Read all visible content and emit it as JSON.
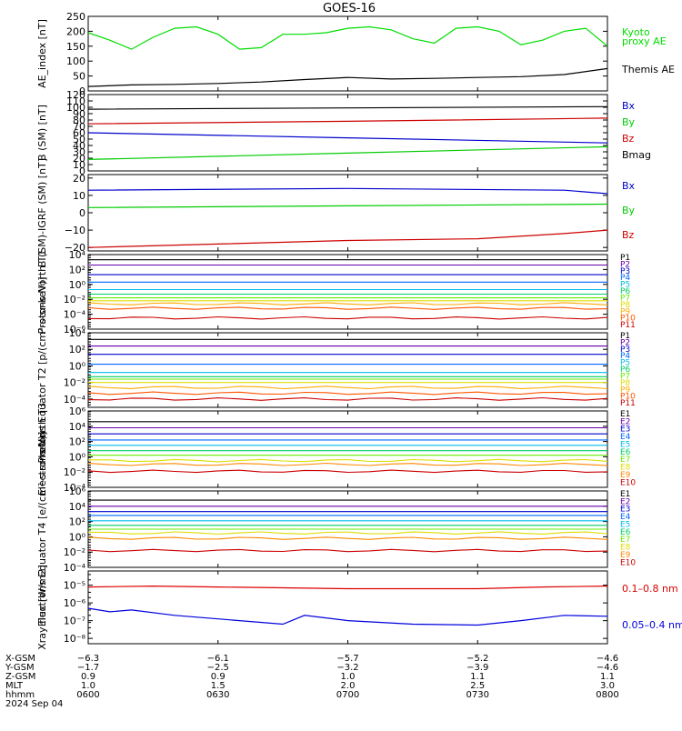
{
  "title": "GOES-16",
  "chart_data": [
    {
      "type": "line",
      "ylabel": "AE_index [nT]",
      "ylim": [
        0,
        250
      ],
      "yscale": "linear",
      "yticks": [
        0,
        50,
        100,
        150,
        200,
        250
      ],
      "ytick_labels": [
        "0",
        "50",
        "100",
        "150",
        "200",
        "250"
      ],
      "series": [
        {
          "name": "Kyoto proxy AE",
          "color": "#00dd00",
          "x": [
            "06:00",
            "06:05",
            "06:10",
            "06:15",
            "06:20",
            "06:25",
            "06:30",
            "06:35",
            "06:40",
            "06:45",
            "06:50",
            "06:55",
            "07:00",
            "07:05",
            "07:10",
            "07:15",
            "07:20",
            "07:25",
            "07:30",
            "07:35",
            "07:40",
            "07:45",
            "07:50",
            "07:55",
            "08:00"
          ],
          "values": [
            195,
            170,
            140,
            180,
            210,
            215,
            190,
            140,
            145,
            190,
            190,
            195,
            210,
            215,
            205,
            175,
            160,
            210,
            215,
            200,
            155,
            170,
            200,
            210,
            150
          ]
        },
        {
          "name": "Themis AE",
          "color": "#000000",
          "x": [
            "06:00",
            "06:10",
            "06:20",
            "06:30",
            "06:40",
            "06:50",
            "07:00",
            "07:10",
            "07:20",
            "07:30",
            "07:40",
            "07:50",
            "08:00"
          ],
          "values": [
            15,
            20,
            22,
            25,
            30,
            38,
            45,
            40,
            42,
            45,
            48,
            55,
            75
          ]
        }
      ]
    },
    {
      "type": "line",
      "ylabel": "B (SM) [nT]",
      "ylim": [
        0,
        120
      ],
      "yscale": "linear",
      "yticks": [
        0,
        10,
        20,
        30,
        40,
        50,
        60,
        70,
        80,
        90,
        100,
        110,
        120
      ],
      "ytick_labels": [
        "0",
        "10",
        "20",
        "30",
        "40",
        "50",
        "60",
        "70",
        "80",
        "90",
        "100",
        "110",
        "120"
      ],
      "series": [
        {
          "name": "Bx",
          "color": "#0000cc",
          "x": [
            "06:00",
            "07:00",
            "08:00"
          ],
          "values": [
            60,
            52,
            44
          ]
        },
        {
          "name": "By",
          "color": "#00cc00",
          "x": [
            "06:00",
            "07:00",
            "08:00"
          ],
          "values": [
            18,
            28,
            38
          ]
        },
        {
          "name": "Bz",
          "color": "#cc0000",
          "x": [
            "06:00",
            "07:00",
            "08:00"
          ],
          "values": [
            74,
            78,
            83
          ]
        },
        {
          "name": "Bmag",
          "color": "#000000",
          "x": [
            "06:00",
            "07:00",
            "08:00"
          ],
          "values": [
            97,
            99,
            101
          ]
        }
      ]
    },
    {
      "type": "line",
      "ylabel": "B (SM)-IGRF (SM) [nT]",
      "ylim": [
        -22,
        22
      ],
      "yscale": "linear",
      "yticks": [
        -20,
        -10,
        0,
        10,
        20
      ],
      "ytick_labels": [
        "−20",
        "−10",
        "0",
        "10",
        "20"
      ],
      "series": [
        {
          "name": "Bx",
          "color": "#0000cc",
          "x": [
            "06:00",
            "07:00",
            "07:50",
            "08:00"
          ],
          "values": [
            13,
            14,
            13,
            11
          ]
        },
        {
          "name": "By",
          "color": "#00cc00",
          "x": [
            "06:00",
            "07:00",
            "08:00"
          ],
          "values": [
            3,
            4,
            5
          ]
        },
        {
          "name": "Bz",
          "color": "#cc0000",
          "x": [
            "06:00",
            "06:30",
            "07:00",
            "07:30",
            "07:50",
            "08:00"
          ],
          "values": [
            -20,
            -18,
            -16,
            -15,
            -12,
            -10
          ]
        }
      ]
    },
    {
      "type": "line",
      "ylabel": "Protons North T1",
      "yscale": "log",
      "ylim_log10": [
        -6,
        4
      ],
      "yticks_log10": [
        -6,
        -4,
        -2,
        0,
        2,
        4
      ],
      "ytick_labels": [
        "10⁻⁶",
        "10⁻⁴",
        "10⁻²",
        "10⁰",
        "10²",
        "10⁴"
      ],
      "channels": [
        "P1",
        "P2",
        "P3",
        "P4",
        "P5",
        "P6",
        "P7",
        "P8",
        "P9",
        "P10",
        "P11"
      ],
      "channel_colors": [
        "#000000",
        "#6600aa",
        "#0000cc",
        "#0066ff",
        "#00bbee",
        "#00cc66",
        "#66ee00",
        "#dddd00",
        "#ffaa00",
        "#ff5500",
        "#cc0000"
      ],
      "log10_levels": [
        3.3,
        2.6,
        1.3,
        0.3,
        -0.7,
        -1.3,
        -1.8,
        -2.2,
        -2.6,
        -3.2,
        -4.5
      ]
    },
    {
      "type": "line",
      "ylabel": "Protons Equator T2 [p/(cm²-s-sr-keV)]",
      "yscale": "log",
      "ylim_log10": [
        -5,
        4
      ],
      "yticks_log10": [
        -4,
        -2,
        0,
        2,
        4
      ],
      "ytick_labels": [
        "10⁻⁴",
        "10⁻²",
        "10⁰",
        "10²",
        "10⁴"
      ],
      "channels": [
        "P1",
        "P2",
        "P3",
        "P4",
        "P5",
        "P6",
        "P7",
        "P8",
        "P9",
        "P10",
        "P11"
      ],
      "channel_colors": [
        "#000000",
        "#6600aa",
        "#0000cc",
        "#0066ff",
        "#00bbee",
        "#00cc66",
        "#66ee00",
        "#dddd00",
        "#ffaa00",
        "#ff5500",
        "#cc0000"
      ],
      "log10_levels": [
        3.2,
        2.4,
        1.4,
        0.2,
        -0.8,
        -1.3,
        -1.6,
        -2.0,
        -2.6,
        -3.3,
        -4.0
      ]
    },
    {
      "type": "line",
      "ylabel": "Electrons North T3",
      "yscale": "log",
      "ylim_log10": [
        -4,
        6
      ],
      "yticks_log10": [
        -4,
        -2,
        0,
        2,
        4,
        6
      ],
      "ytick_labels": [
        "10⁻⁴",
        "10⁻²",
        "10⁰",
        "10²",
        "10⁴",
        "10⁶"
      ],
      "channels": [
        "E1",
        "E2",
        "E3",
        "E4",
        "E5",
        "E6",
        "E7",
        "E8",
        "E9",
        "E10"
      ],
      "channel_colors": [
        "#000000",
        "#6600aa",
        "#0000cc",
        "#0066ff",
        "#00bbee",
        "#00cc66",
        "#66ee00",
        "#dddd00",
        "#ff8800",
        "#cc0000"
      ],
      "log10_levels": [
        4.6,
        3.8,
        3.0,
        2.2,
        1.5,
        0.8,
        0.2,
        -0.5,
        -1.0,
        -1.9
      ]
    },
    {
      "type": "line",
      "ylabel": "Electrons Equator T4 [e/(cm²-s-sr-keV)]",
      "yscale": "log",
      "ylim_log10": [
        -4,
        6
      ],
      "yticks_log10": [
        -4,
        -2,
        0,
        2,
        4,
        6
      ],
      "ytick_labels": [
        "10⁻⁴",
        "10⁻²",
        "10⁰",
        "10²",
        "10⁴",
        "10⁶"
      ],
      "channels": [
        "E1",
        "E2",
        "E3",
        "E4",
        "E5",
        "E6",
        "E7",
        "E8",
        "E9",
        "E10"
      ],
      "channel_colors": [
        "#000000",
        "#6600aa",
        "#0000cc",
        "#0066ff",
        "#00bbee",
        "#00cc66",
        "#66ee00",
        "#dddd00",
        "#ff8800",
        "#cc0000"
      ],
      "log10_levels": [
        4.8,
        4.0,
        3.3,
        2.8,
        2.1,
        1.5,
        1.0,
        0.5,
        -0.2,
        -1.8
      ]
    },
    {
      "type": "line",
      "ylabel": "Xray flux [W/m2]",
      "yscale": "log",
      "ylim_log10": [
        -8.3,
        -4.2
      ],
      "yticks_log10": [
        -8,
        -7,
        -6,
        -5
      ],
      "ytick_labels": [
        "10⁻⁸",
        "10⁻⁷",
        "10⁻⁶",
        "10⁻⁵"
      ],
      "series": [
        {
          "name": "0.1–0.8 nm",
          "color": "#dd0000",
          "x": [
            "06:00",
            "06:15",
            "06:30",
            "06:45",
            "07:00",
            "07:15",
            "07:30",
            "07:45",
            "08:00"
          ],
          "log10_values": [
            -5.1,
            -5.05,
            -5.1,
            -5.15,
            -5.2,
            -5.2,
            -5.2,
            -5.1,
            -5.05
          ]
        },
        {
          "name": "0.05–0.4 nm",
          "color": "#0000dd",
          "x": [
            "06:00",
            "06:05",
            "06:10",
            "06:20",
            "06:30",
            "06:45",
            "06:50",
            "07:00",
            "07:15",
            "07:30",
            "07:40",
            "07:50",
            "08:00"
          ],
          "log10_values": [
            -6.3,
            -6.5,
            -6.4,
            -6.7,
            -6.9,
            -7.2,
            -6.7,
            -7.0,
            -7.2,
            -7.25,
            -7.0,
            -6.7,
            -6.75
          ]
        }
      ]
    }
  ],
  "panel_labels": [
    [
      {
        "text": "Kyoto",
        "color": "#00dd00"
      },
      {
        "text": "proxy AE",
        "color": "#00dd00"
      },
      {
        "text": "Themis AE",
        "color": "#000000"
      }
    ],
    [
      {
        "text": "Bx",
        "color": "#0000cc"
      },
      {
        "text": "By",
        "color": "#00cc00"
      },
      {
        "text": "Bz",
        "color": "#cc0000"
      },
      {
        "text": "Bmag",
        "color": "#000000"
      }
    ],
    [
      {
        "text": "Bx",
        "color": "#0000cc"
      },
      {
        "text": "By",
        "color": "#00cc00"
      },
      {
        "text": "Bz",
        "color": "#cc0000"
      }
    ],
    [],
    [],
    [],
    [],
    [
      {
        "text": "0.1–0.8 nm",
        "color": "#dd0000"
      },
      {
        "text": "0.05–0.4 nm",
        "color": "#0000dd"
      }
    ]
  ],
  "xaxis": {
    "range": [
      "06:00",
      "08:00"
    ],
    "tick_times": [
      "06:00",
      "06:30",
      "07:00",
      "07:30",
      "08:00"
    ],
    "rows": [
      {
        "label": "X-GSM",
        "values": [
          "−6.3",
          "−6.1",
          "−5.7",
          "−5.2",
          "−4.6"
        ]
      },
      {
        "label": "Y-GSM",
        "values": [
          "−1.7",
          "−2.5",
          "−3.2",
          "−3.9",
          "−4.6"
        ]
      },
      {
        "label": "Z-GSM",
        "values": [
          "0.9",
          "0.9",
          "1.0",
          "1.1",
          "1.1"
        ]
      },
      {
        "label": "MLT",
        "values": [
          "1.0",
          "1.5",
          "2.0",
          "2.5",
          "3.0"
        ]
      },
      {
        "label": "hhmm",
        "values": [
          "0600",
          "0630",
          "0700",
          "0730",
          "0800"
        ]
      }
    ],
    "date": "2024 Sep 04"
  }
}
